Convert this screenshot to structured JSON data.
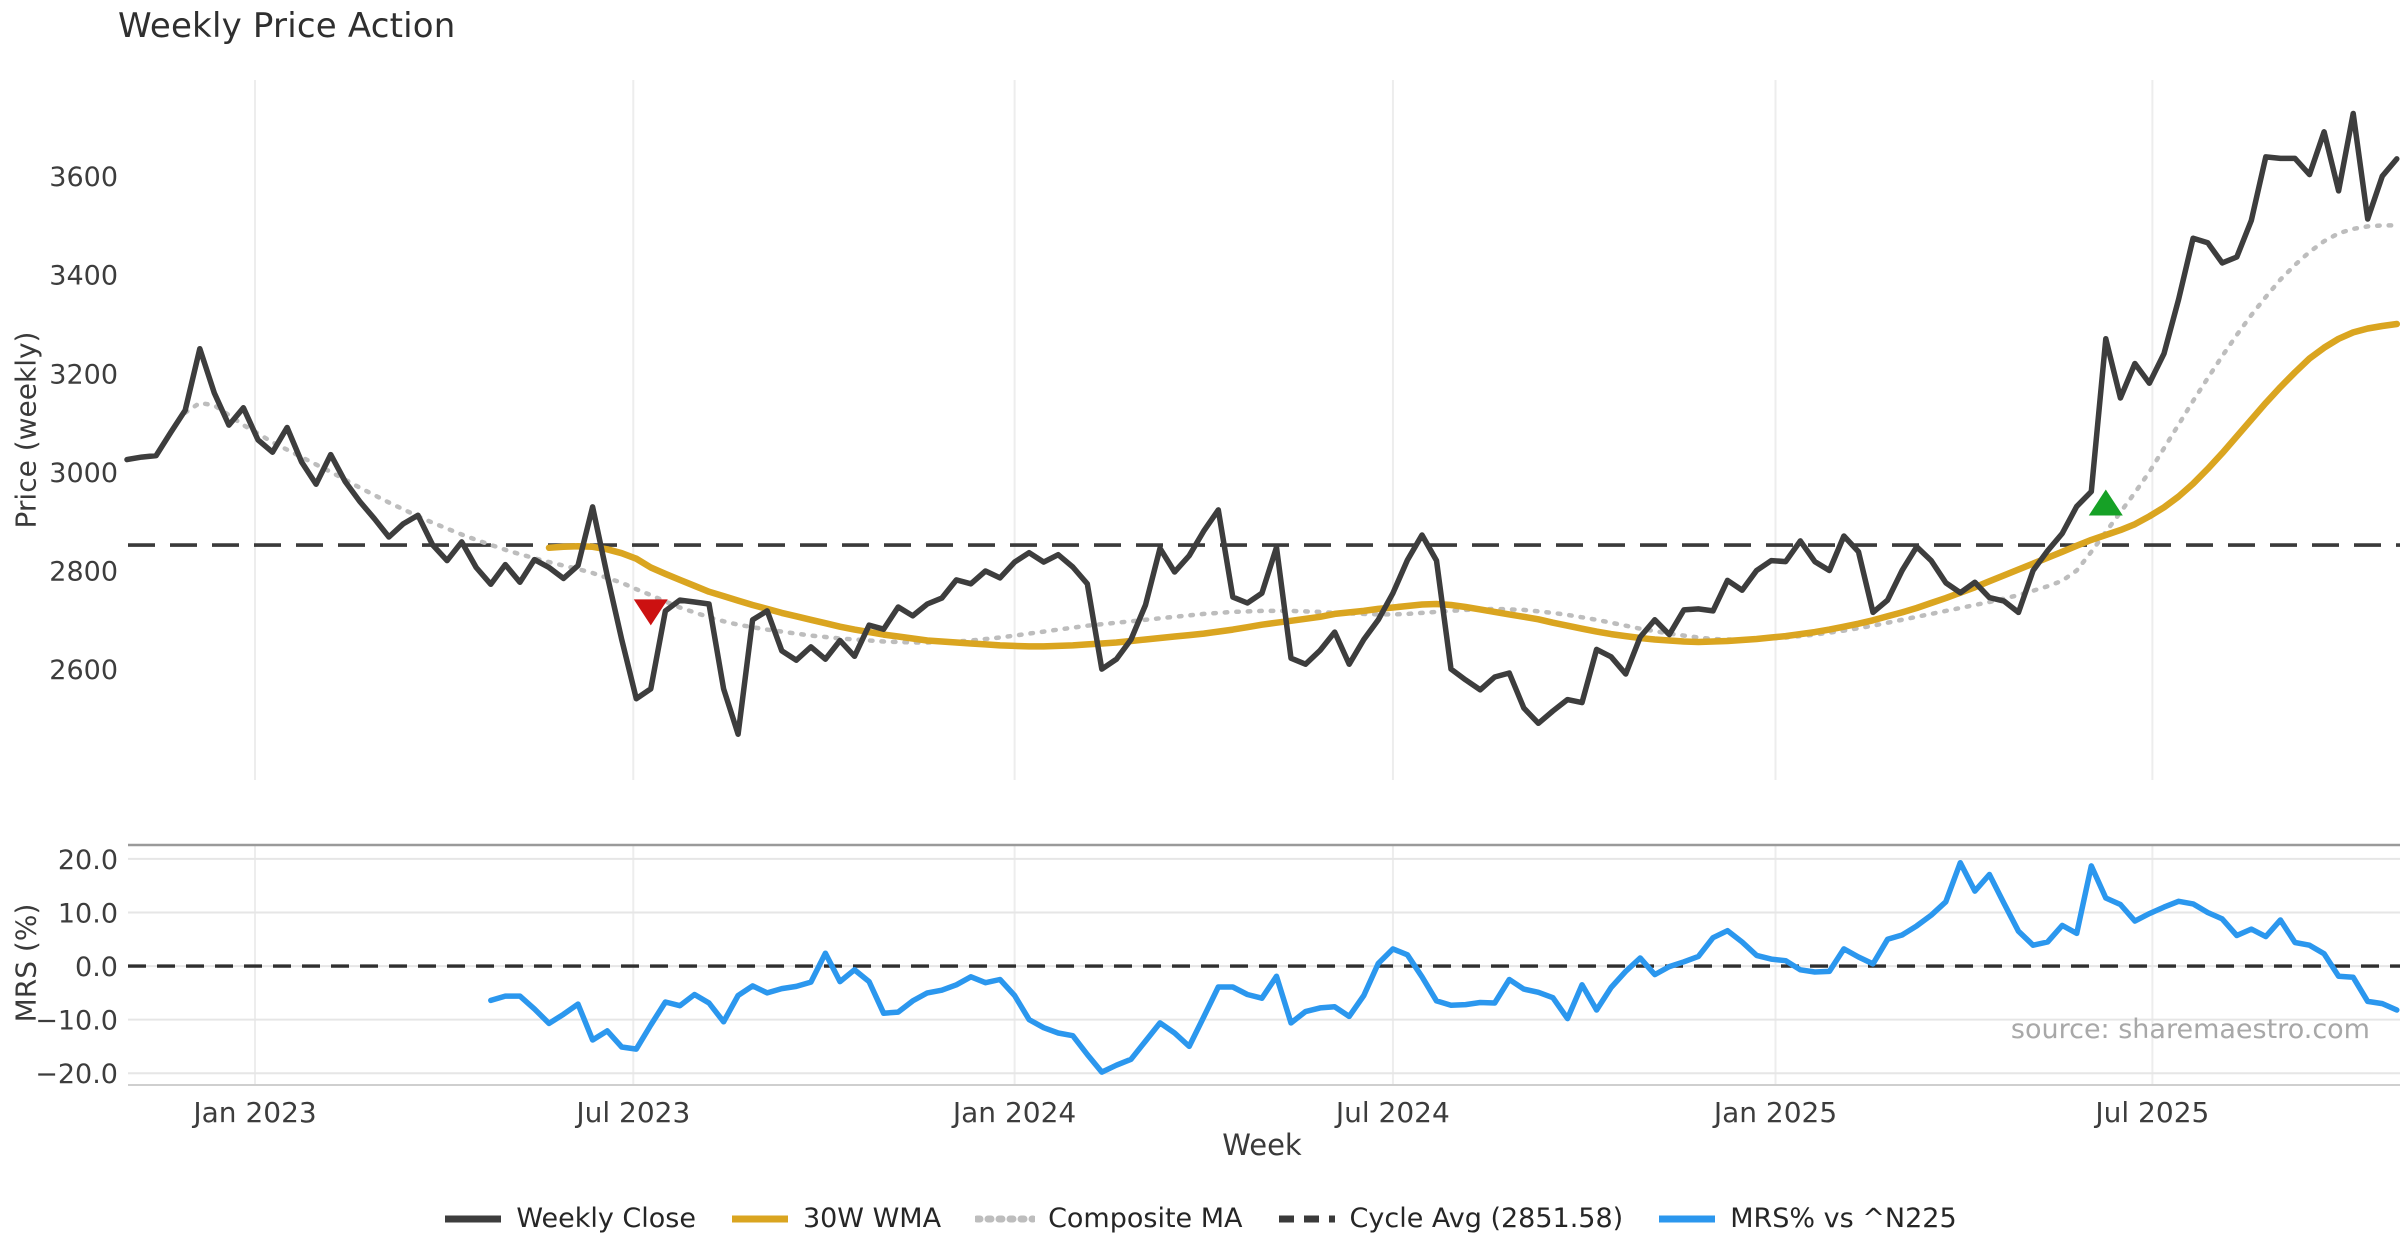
{
  "chart_data": {
    "type": "line",
    "title": "Weekly Price Action",
    "xlabel": "Week",
    "source": "source: sharemaestro.com",
    "x_axis": {
      "unit": "week-index",
      "tick_labels": [
        "Jan 2023",
        "Jul 2023",
        "Jan 2024",
        "Jul 2024",
        "Jan 2025",
        "Jul 2025"
      ],
      "tick_weeks": [
        8.8,
        34.8,
        61.0,
        87.0,
        113.3,
        139.2
      ],
      "grid": true
    },
    "panel_price": {
      "ylabel": "Price (weekly)",
      "ylim": [
        2375,
        3795
      ],
      "yticks": [
        2600,
        2800,
        3000,
        3200,
        3400,
        3600
      ],
      "cycle_avg": 2851.58,
      "series": {
        "weekly_close": {
          "name": "Weekly Close",
          "start_week": 0,
          "values": [
            3025,
            3030,
            3033,
            3080,
            3125,
            3250,
            3160,
            3095,
            3130,
            3065,
            3040,
            3090,
            3020,
            2975,
            3035,
            2980,
            2940,
            2905,
            2868,
            2895,
            2912,
            2852,
            2820,
            2858,
            2806,
            2772,
            2812,
            2776,
            2822,
            2806,
            2784,
            2810,
            2929,
            2790,
            2660,
            2540,
            2560,
            2718,
            2740,
            2736,
            2732,
            2560,
            2468,
            2700,
            2718,
            2637,
            2618,
            2645,
            2620,
            2658,
            2626,
            2689,
            2681,
            2726,
            2708,
            2732,
            2744,
            2781,
            2773,
            2799,
            2785,
            2817,
            2836,
            2817,
            2832,
            2807,
            2773,
            2600,
            2620,
            2660,
            2730,
            2845,
            2797,
            2830,
            2880,
            2923,
            2746,
            2734,
            2754,
            2847,
            2622,
            2610,
            2638,
            2675,
            2610,
            2660,
            2700,
            2754,
            2821,
            2872,
            2820,
            2600,
            2578,
            2558,
            2584,
            2592,
            2521,
            2490,
            2515,
            2538,
            2532,
            2640,
            2625,
            2590,
            2665,
            2700,
            2670,
            2720,
            2722,
            2718,
            2780,
            2760,
            2800,
            2820,
            2818,
            2860,
            2818,
            2800,
            2870,
            2838,
            2715,
            2740,
            2800,
            2848,
            2820,
            2775,
            2755,
            2776,
            2745,
            2738,
            2715,
            2800,
            2840,
            2875,
            2930,
            2960,
            3270,
            3150,
            3220,
            3180,
            3240,
            3350,
            3474,
            3465,
            3424,
            3436,
            3510,
            3639,
            3636,
            3636,
            3603,
            3690,
            3570,
            3727,
            3513,
            3600,
            3635
          ]
        },
        "wma_30w": {
          "name": "30W WMA",
          "start_week": 29,
          "values": [
            2846,
            2848,
            2849,
            2848,
            2843,
            2835,
            2824,
            2806,
            2793,
            2781,
            2769,
            2757,
            2748,
            2739,
            2730,
            2722,
            2714,
            2707,
            2700,
            2693,
            2686,
            2680,
            2675,
            2670,
            2666,
            2662,
            2658,
            2656,
            2654,
            2652,
            2650,
            2648,
            2647,
            2646,
            2646,
            2647,
            2648,
            2650,
            2652,
            2654,
            2657,
            2660,
            2663,
            2666,
            2669,
            2672,
            2676,
            2680,
            2685,
            2690,
            2694,
            2698,
            2702,
            2706,
            2712,
            2715,
            2718,
            2722,
            2725,
            2728,
            2731,
            2732,
            2730,
            2726,
            2721,
            2716,
            2711,
            2706,
            2701,
            2694,
            2688,
            2682,
            2676,
            2671,
            2667,
            2663,
            2660,
            2658,
            2656,
            2655,
            2656,
            2657,
            2659,
            2661,
            2664,
            2667,
            2671,
            2675,
            2680,
            2686,
            2692,
            2699,
            2707,
            2715,
            2724,
            2734,
            2744,
            2755,
            2766,
            2778,
            2790,
            2802,
            2814,
            2826,
            2838,
            2850,
            2862,
            2872,
            2882,
            2894,
            2910,
            2928,
            2950,
            2976,
            3006,
            3038,
            3072,
            3106,
            3140,
            3172,
            3202,
            3230,
            3252,
            3270,
            3283,
            3291,
            3296,
            3300
          ]
        },
        "composite_ma": {
          "name": "Composite MA",
          "start_week": 4,
          "values": [
            3120,
            3140,
            3135,
            3115,
            3095,
            3078,
            3060,
            3045,
            3030,
            3015,
            3000,
            2984,
            2968,
            2953,
            2938,
            2924,
            2910,
            2897,
            2885,
            2873,
            2862,
            2852,
            2842,
            2833,
            2825,
            2817,
            2810,
            2803,
            2795,
            2785,
            2775,
            2762,
            2750,
            2737,
            2725,
            2715,
            2705,
            2697,
            2690,
            2685,
            2680,
            2676,
            2672,
            2668,
            2665,
            2662,
            2660,
            2658,
            2656,
            2655,
            2654,
            2654,
            2655,
            2656,
            2658,
            2661,
            2664,
            2668,
            2672,
            2676,
            2680,
            2684,
            2688,
            2691,
            2694,
            2697,
            2700,
            2703,
            2706,
            2709,
            2712,
            2714,
            2716,
            2717,
            2718,
            2718,
            2718,
            2717,
            2716,
            2714,
            2713,
            2712,
            2711,
            2711,
            2712,
            2714,
            2716,
            2718,
            2720,
            2721,
            2722,
            2721,
            2720,
            2717,
            2714,
            2710,
            2705,
            2700,
            2694,
            2688,
            2682,
            2677,
            2672,
            2668,
            2664,
            2661,
            2660,
            2660,
            2660,
            2662,
            2664,
            2667,
            2670,
            2674,
            2678,
            2683,
            2688,
            2694,
            2700,
            2706,
            2712,
            2718,
            2724,
            2730,
            2736,
            2743,
            2750,
            2759,
            2768,
            2779,
            2800,
            2838,
            2878,
            2918,
            2958,
            3000,
            3048,
            3096,
            3144,
            3190,
            3235,
            3278,
            3318,
            3355,
            3390,
            3420,
            3446,
            3468,
            3484,
            3493,
            3498,
            3500,
            3500
          ]
        }
      },
      "markers": [
        {
          "kind": "sell-signal",
          "shape": "triangle-down",
          "week": 36,
          "value": 2715
        },
        {
          "kind": "buy-signal",
          "shape": "triangle-up",
          "week": 136,
          "value": 2938
        }
      ]
    },
    "panel_mrs": {
      "ylabel": "MRS (%)",
      "ylim": [
        -22.2,
        22.6
      ],
      "yticks": [
        -20,
        -10,
        0,
        10,
        20
      ],
      "zero_line": 0,
      "series": {
        "mrs": {
          "name": "MRS% vs ^N225",
          "start_week": 25,
          "values": [
            -6.4,
            -5.6,
            -5.6,
            -8.0,
            -10.7,
            -9.0,
            -7.1,
            -13.8,
            -12.1,
            -15.1,
            -15.5,
            -11.0,
            -6.7,
            -7.4,
            -5.3,
            -6.9,
            -10.4,
            -5.5,
            -3.7,
            -5.0,
            -4.2,
            -3.8,
            -3.0,
            2.4,
            -2.9,
            -0.7,
            -2.9,
            -8.8,
            -8.6,
            -6.5,
            -5.0,
            -4.5,
            -3.5,
            -2.0,
            -3.1,
            -2.5,
            -5.5,
            -10.0,
            -11.5,
            -12.5,
            -13.0,
            -16.5,
            -19.8,
            -18.5,
            -17.4,
            -14.0,
            -10.6,
            -12.5,
            -15.0,
            -9.5,
            -3.9,
            -3.9,
            -5.3,
            -6.0,
            -1.9,
            -10.6,
            -8.5,
            -7.8,
            -7.6,
            -9.4,
            -5.5,
            0.5,
            3.2,
            2.1,
            -2.0,
            -6.5,
            -7.3,
            -7.2,
            -6.8,
            -6.9,
            -2.5,
            -4.3,
            -4.9,
            -5.9,
            -9.8,
            -3.5,
            -8.2,
            -4.0,
            -1.0,
            1.5,
            -1.6,
            -0.1,
            0.8,
            1.8,
            5.3,
            6.6,
            4.5,
            2.0,
            1.3,
            1.0,
            -0.7,
            -1.1,
            -1.0,
            3.2,
            1.7,
            0.4,
            5.0,
            5.8,
            7.5,
            9.5,
            12.0,
            19.3,
            14.0,
            17.1,
            11.7,
            6.5,
            3.9,
            4.5,
            7.6,
            6.1,
            18.7,
            12.7,
            11.5,
            8.4,
            9.8,
            11.0,
            12.1,
            11.6,
            10.0,
            8.8,
            5.7,
            6.9,
            5.5,
            8.6,
            4.4,
            3.9,
            2.3,
            -1.9,
            -2.1,
            -6.6,
            -7.0,
            -8.2
          ]
        }
      }
    },
    "legend": [
      {
        "label": "Weekly Close",
        "color": "#3d3d3d",
        "style": "solid"
      },
      {
        "label": "30W WMA",
        "color": "#daa520",
        "style": "solid"
      },
      {
        "label": "Composite MA",
        "color": "#bdbdbd",
        "style": "dotted"
      },
      {
        "label": "Cycle Avg (2851.58)",
        "color": "#3a3a3a",
        "style": "dashed"
      },
      {
        "label": "MRS% vs ^N225",
        "color": "#2b97ee",
        "style": "solid"
      }
    ],
    "colors": {
      "weekly_close": "#3d3d3d",
      "wma_30w": "#daa520",
      "composite_ma": "#bdbdbd",
      "cycle_avg": "#3a3a3a",
      "mrs": "#2b97ee",
      "buy_marker": "#16a126",
      "sell_marker": "#cc1111",
      "grid_vertical": "#ededed",
      "grid_horizontal": "#e6e6e6",
      "spine": "#9a9a9a",
      "tick_text": "#3d3d3d"
    }
  }
}
